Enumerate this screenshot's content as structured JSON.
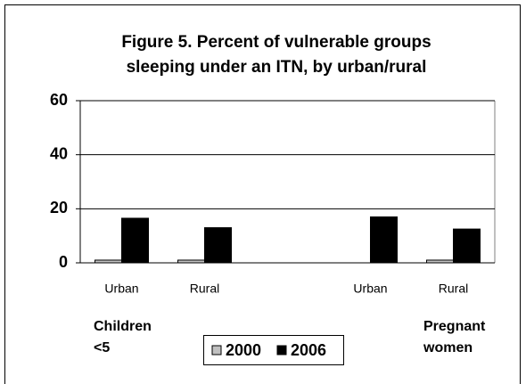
{
  "chart_data": {
    "type": "bar",
    "title": [
      "Figure 5. Percent of vulnerable groups",
      "sleeping under an ITN, by urban/rural"
    ],
    "categories": [
      "Urban",
      "Rural",
      null,
      "Urban",
      "Rural"
    ],
    "series": [
      {
        "name": "2000",
        "color": "#c0c0c0",
        "values": [
          1,
          1,
          null,
          null,
          1
        ]
      },
      {
        "name": "2006",
        "color": "#000000",
        "values": [
          16.5,
          13,
          null,
          17,
          12.5
        ]
      }
    ],
    "group_labels": [
      [
        "Children",
        "<5"
      ],
      [
        "Pregnant",
        "women"
      ]
    ],
    "ylim": [
      0,
      60
    ],
    "yticks": [
      0,
      20,
      40,
      60
    ],
    "grid": true,
    "legend": "bottom"
  }
}
